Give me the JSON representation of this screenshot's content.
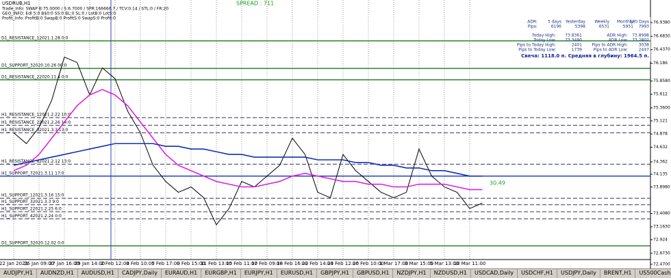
{
  "header": {
    "symbol": "USDRUB,H1",
    "lines": [
      "Trade_Info: SWAP B:75.0000 / S:6.7000 / SPR:166666.7 / TCV:0.14 / STL:0 / FR:20",
      "GEO_INFO: EdI 5:0 B$0:0 SS:0 BL:0 SL:0 / LotB:0 LotS:0",
      "Profit_Info: ProfitB:0 SwapB:0 ProfitS:0 SwapS:0 Profit:0"
    ]
  },
  "spread": "SPREAD : 711",
  "info_panel": {
    "header": [
      "ADR:",
      "5 days",
      "Yesterday",
      "Weekly",
      "Monthly",
      "180 Days"
    ],
    "pips": [
      "Pips:",
      "6196",
      "5398",
      "6531",
      "5951",
      "7993"
    ],
    "rows": [
      [
        "Today High:",
        "73.8361",
        "ADR High:",
        "73.8998"
      ],
      [
        "Today Low:",
        "73.3490",
        "ADR Low:",
        "73.2802"
      ],
      [
        "Pips to Today High:",
        "2401",
        "Pips to ADR High:",
        "3038"
      ],
      [
        "Pips to Today Low:",
        "1739",
        "Pips to ADR Low:",
        "2447"
      ]
    ],
    "candle": "Свеча: 1118.0 п. Средняя в глубину: 1964.5 п."
  },
  "range_label": "30.49",
  "chart_data": {
    "type": "line",
    "categories": [
      "22 Jan 2021",
      null,
      "26 Jan 09:00",
      null,
      "27 Jan 16:00",
      null,
      "29 Jan 14:00",
      null,
      "2 Feb 12:00",
      null,
      "4 Feb 10:00",
      null,
      "5 Feb 17:00",
      null,
      "9 Feb 15:00",
      null,
      "11 Feb 13:00",
      null,
      "15 Feb 11:00",
      null,
      "17 Feb 09:00",
      null,
      "18 Feb 16:00",
      null,
      "22 Feb 14:00",
      null,
      "24 Feb 12:00",
      null,
      "26 Feb 10:00",
      null,
      "1 Mar 17:00",
      null,
      "3 Mar 15:00",
      null,
      "5 Mar 13:00",
      null,
      "10 Mar 11:00",
      null
    ],
    "series": [
      {
        "name": "Price",
        "color": "#000000",
        "values": [
          74.9,
          74.7,
          75.0,
          75.5,
          76.3,
          76.2,
          75.6,
          76.1,
          75.9,
          75.3,
          74.9,
          74.3,
          74.0,
          73.8,
          73.9,
          73.7,
          73.2,
          73.5,
          74.0,
          73.9,
          74.1,
          74.3,
          74.8,
          74.5,
          73.8,
          73.7,
          74.5,
          74.2,
          74.0,
          73.8,
          73.7,
          73.8,
          74.6,
          74.1,
          73.9,
          73.8,
          73.5,
          73.6
        ]
      },
      {
        "name": "MA fast",
        "color": "#e020e0",
        "values": [
          74.2,
          74.3,
          74.5,
          74.8,
          75.1,
          75.4,
          75.6,
          75.7,
          75.6,
          75.4,
          75.1,
          74.8,
          74.5,
          74.3,
          74.2,
          74.1,
          74.0,
          73.95,
          73.9,
          73.9,
          73.95,
          74.0,
          74.1,
          74.15,
          74.1,
          74.05,
          74.0,
          74.0,
          73.95,
          73.95,
          73.9,
          73.9,
          73.95,
          73.95,
          73.95,
          73.9,
          73.85,
          73.85
        ]
      },
      {
        "name": "MA slow",
        "color": "#1030b0",
        "values": [
          74.3,
          74.35,
          74.4,
          74.45,
          74.5,
          74.55,
          74.6,
          74.65,
          74.7,
          74.7,
          74.7,
          74.7,
          74.65,
          74.65,
          74.6,
          74.6,
          74.55,
          74.5,
          74.5,
          74.45,
          74.45,
          74.45,
          74.45,
          74.45,
          74.4,
          74.4,
          74.4,
          74.35,
          74.35,
          74.3,
          74.3,
          74.25,
          74.25,
          74.2,
          74.2,
          74.15,
          74.1,
          74.1
        ]
      }
    ],
    "ylim": [
      72.405,
      77.355
    ],
    "yticks": [
      {
        "value": 76.938,
        "label": "76.9380"
      },
      {
        "value": 76.683,
        "label": "76.6830"
      },
      {
        "value": 76.437,
        "label": "76.4370"
      },
      76.186,
      {
        "value": 75.858,
        "label": "75.8580"
      },
      75.612,
      {
        "value": 75.36,
        "label": "75.3600"
      },
      75.121,
      74.878,
      74.632,
      74.362,
      74.135,
      {
        "value": 73.898,
        "label": "73.8980"
      },
      {
        "value": 73.408,
        "label": "73.4080"
      },
      {
        "value": 73.163,
        "label": "73.1630"
      },
      72.924,
      {
        "value": 72.673,
        "label": "72.6730"
      },
      {
        "value": 72.47,
        "label": "72.4700"
      }
    ],
    "levels": [
      {
        "label": "D1_RESISTANCE_12021.1.28 0:0",
        "value": 76.6,
        "color": "#1a7a1a",
        "style": "solid"
      },
      {
        "label": "D1_SUPPORT_32020.10.26 00:0",
        "value": 76.09,
        "color": "#1a7a1a",
        "style": "solid"
      },
      {
        "label": "D1_RESISTANCE_22020.11.4 0:0",
        "value": 75.88,
        "color": "#1a7a1a",
        "style": "solid"
      },
      {
        "label": "H1_RESISTANCE_12021.2.22 10:0",
        "value": 75.18,
        "color": "#333366",
        "style": "dash"
      },
      {
        "label": "H1_RESISTANCE_22021.2.26 14:0",
        "value": 75.04,
        "color": "#333366",
        "style": "dash"
      },
      {
        "label": "H1_RESISTANCE_32021.3.3 13:0",
        "value": 74.9,
        "color": "#333366",
        "style": "dash"
      },
      {
        "label": "H1_RESISTANCE_62021.2.12 13:0",
        "value": 74.32,
        "color": "#333366",
        "style": "dash"
      },
      {
        "label": "H1_SUPPORT_72021.3.11 17:0",
        "value": 74.1,
        "color": "#1030c0",
        "style": "solid"
      },
      {
        "label": "H1_SUPPORT_12021.3.16 15:0",
        "value": 73.69,
        "color": "#333366",
        "style": "dash"
      },
      {
        "label": "H1_SUPPORT_32021.3.3 9:0",
        "value": 73.57,
        "color": "#333366",
        "style": "dash"
      },
      {
        "label": "H1_SUPPORT_22021.2.25 6:0",
        "value": 73.44,
        "color": "#333366",
        "style": "dash"
      },
      {
        "label": "H1_SUPPORT_42021.2.24 0:0",
        "value": 73.31,
        "color": "#333366",
        "style": "dash"
      },
      {
        "label": "D1_SUPPORT_32020.12.02 0:0",
        "value": 72.81,
        "color": "#1a7a1a",
        "style": "solid"
      }
    ]
  },
  "tabs": [
    "AUDJPY,H1",
    "AUDNZD,H1",
    "AUDUSD,H1",
    "CADJPY,Daily",
    "EURAUD,H1",
    "EURGBP,H1",
    "EURJPY,H1",
    "EURUSD,H1",
    "GBPJPY,H1",
    "GBPUSD,H1",
    "NZDJPY,H1",
    "NZDUSD,H1",
    "USDCAD,Daily",
    "USDCHF,H1",
    "USDJPY,Daily",
    "BRENT,H1",
    "US500Cash,Daily",
    "XAUUSD,H1",
    "USDRUB,H1"
  ]
}
